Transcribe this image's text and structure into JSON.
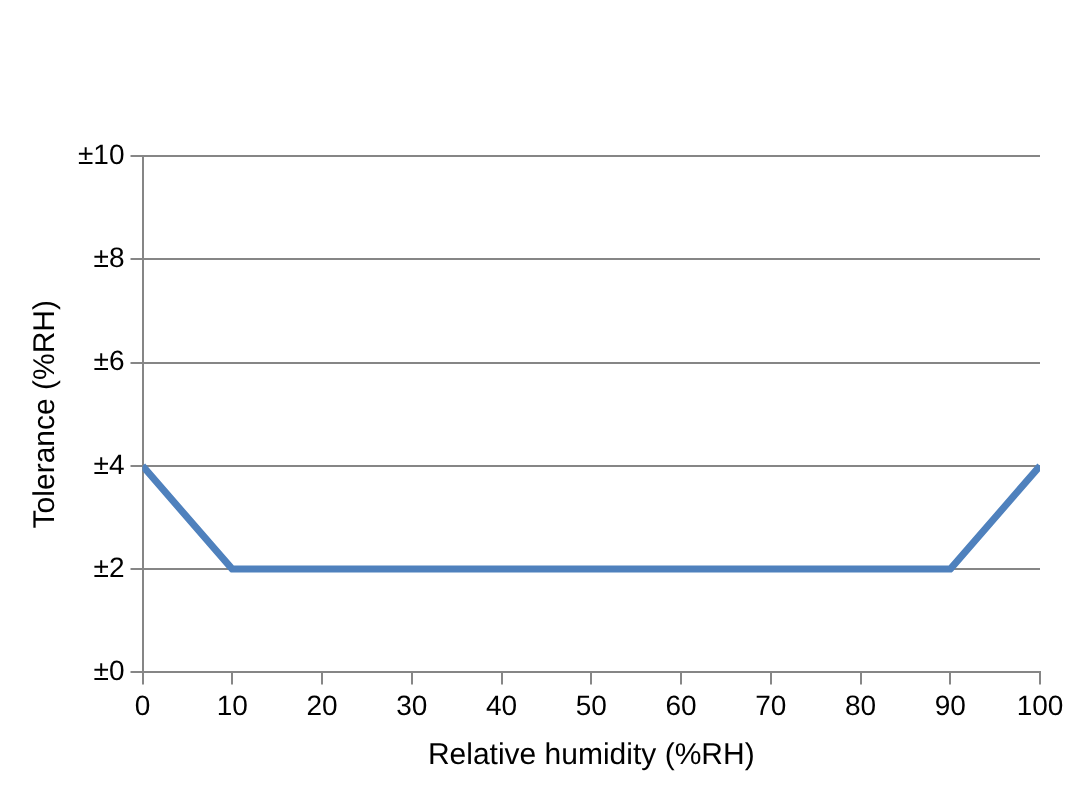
{
  "chart_data": {
    "type": "line",
    "xlabel": "Relative humidity (%RH)",
    "ylabel": "Tolerance (%RH)",
    "x": [
      0,
      10,
      90,
      100
    ],
    "series": [
      {
        "color": "#4f81bd",
        "values": [
          4,
          2,
          2,
          4
        ]
      }
    ],
    "xlim": [
      0,
      100
    ],
    "xticks": [
      0,
      10,
      20,
      30,
      40,
      50,
      60,
      70,
      80,
      90,
      100
    ],
    "ylim": [
      0,
      10
    ],
    "yticks": [
      {
        "value": 0,
        "label": "±0"
      },
      {
        "value": 2,
        "label": "±2"
      },
      {
        "value": 4,
        "label": "±4"
      },
      {
        "value": 6,
        "label": "±6"
      },
      {
        "value": 8,
        "label": "±8"
      },
      {
        "value": 10,
        "label": "±10"
      }
    ],
    "grid": "y",
    "legend": false,
    "marker": "none",
    "line_style": "solid"
  }
}
